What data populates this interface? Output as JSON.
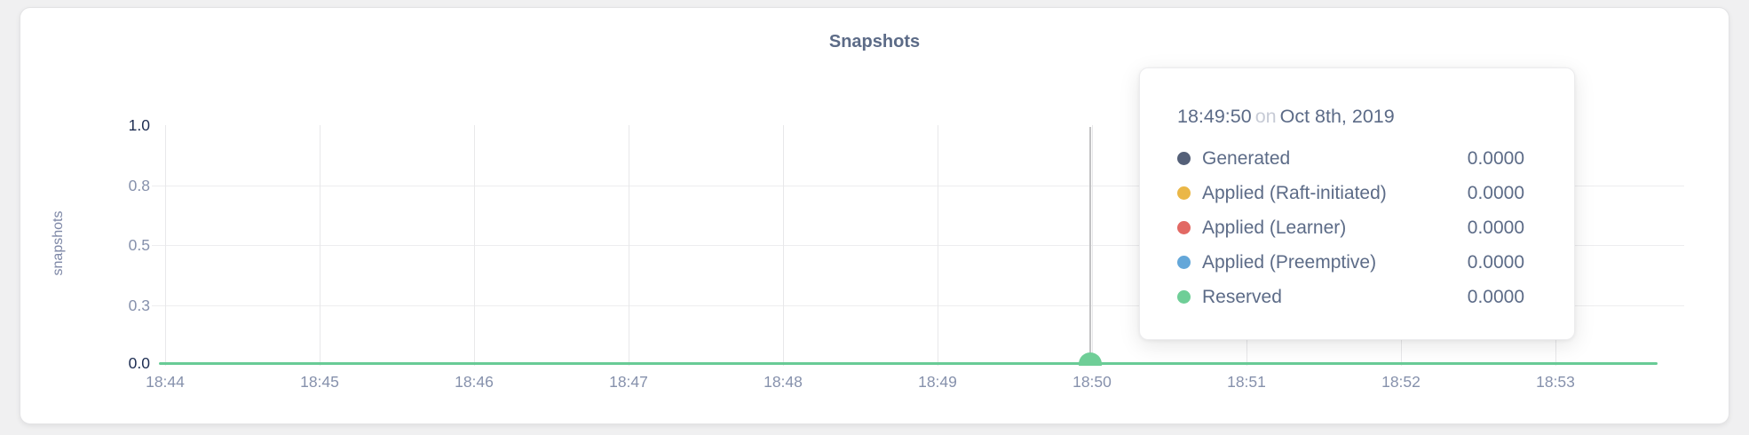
{
  "chart_data": {
    "type": "line",
    "title": "Snapshots",
    "xlabel": "",
    "ylabel": "snapshots",
    "x": [
      "18:44",
      "18:45",
      "18:46",
      "18:47",
      "18:48",
      "18:49",
      "18:50",
      "18:51",
      "18:52",
      "18:53"
    ],
    "ylim": [
      0,
      1
    ],
    "grid": true,
    "y_ticks": [
      {
        "value": 1.0,
        "label": "1.0",
        "emphasized": true
      },
      {
        "value": 0.75,
        "label": "0.8",
        "emphasized": false
      },
      {
        "value": 0.5,
        "label": "0.5",
        "emphasized": false
      },
      {
        "value": 0.25,
        "label": "0.3",
        "emphasized": false
      },
      {
        "value": 0.0,
        "label": "0.0",
        "emphasized": true
      }
    ],
    "series": [
      {
        "name": "Generated",
        "color": "#546078",
        "values": [
          0,
          0,
          0,
          0,
          0,
          0,
          0,
          0,
          0,
          0
        ]
      },
      {
        "name": "Applied (Raft-initiated)",
        "color": "#eab747",
        "values": [
          0,
          0,
          0,
          0,
          0,
          0,
          0,
          0,
          0,
          0
        ]
      },
      {
        "name": "Applied (Learner)",
        "color": "#e26964",
        "values": [
          0,
          0,
          0,
          0,
          0,
          0,
          0,
          0,
          0,
          0
        ]
      },
      {
        "name": "Applied (Preemptive)",
        "color": "#64a7d9",
        "values": [
          0,
          0,
          0,
          0,
          0,
          0,
          0,
          0,
          0,
          0
        ]
      },
      {
        "name": "Reserved",
        "color": "#6fce97",
        "values": [
          0,
          0,
          0,
          0,
          0,
          0,
          0,
          0,
          0,
          0
        ]
      }
    ],
    "visible_line_color": "#68cb96",
    "legend_position": "none",
    "hover_point": {
      "time": "18:49:50",
      "value": 0
    }
  },
  "tooltip": {
    "time": "18:49:50",
    "connector": "on",
    "date": "Oct 8th, 2019",
    "rows": [
      {
        "label": "Generated",
        "value": "0.0000",
        "color": "#546078"
      },
      {
        "label": "Applied (Raft-initiated)",
        "value": "0.0000",
        "color": "#eab747"
      },
      {
        "label": "Applied (Learner)",
        "value": "0.0000",
        "color": "#e26964"
      },
      {
        "label": "Applied (Preemptive)",
        "value": "0.0000",
        "color": "#64a7d9"
      },
      {
        "label": "Reserved",
        "value": "0.0000",
        "color": "#6fce97"
      }
    ]
  },
  "colors": {
    "page_background": "#f0f0f1",
    "card_background": "#ffffff",
    "crosshair": "#c2c2c4",
    "gridline": "#e8e8ea",
    "tick_text": "#8691ac",
    "tick_text_emphasized": "#1d2d52",
    "title_text": "#5c6b87"
  }
}
